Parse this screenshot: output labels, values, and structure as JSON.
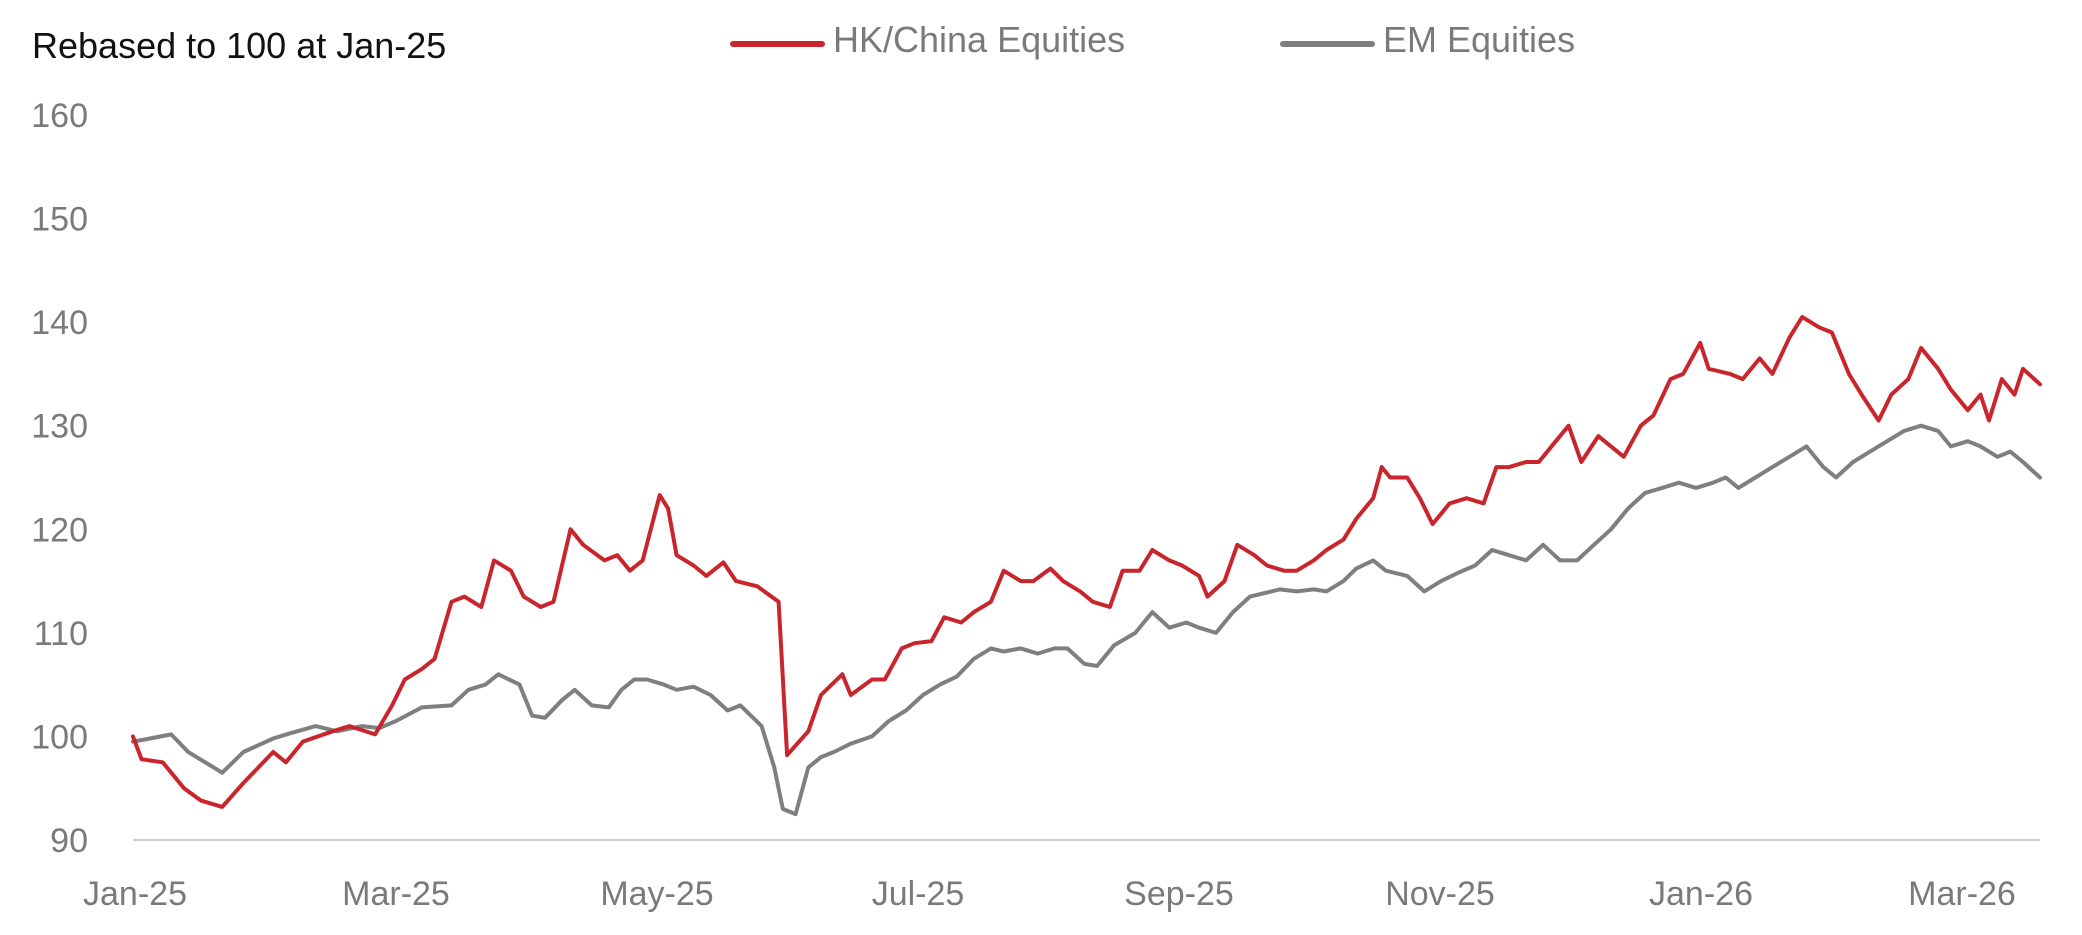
{
  "chart_data": {
    "type": "line",
    "title": "Rebased to 100 at Jan-25",
    "xlabel": "",
    "ylabel": "",
    "ylim": [
      90,
      160
    ],
    "y_ticks": [
      "90",
      "100",
      "110",
      "120",
      "130",
      "140",
      "150",
      "160"
    ],
    "x_tick_labels": [
      "Jan-25",
      "Mar-25",
      "May-25",
      "Jul-25",
      "Sep-25",
      "Nov-25",
      "Jan-26",
      "Mar-26"
    ],
    "x_range": [
      "2025-01-01",
      "2026-03-26"
    ],
    "grid": false,
    "legend_position": "top-center",
    "colors": {
      "hk_china": "#c9252c",
      "em": "#7f7f7f",
      "axis": "#cccccc"
    },
    "series": [
      {
        "name": "HK/China Equities",
        "color": "#c9252c",
        "points": [
          [
            "2025-01-01",
            100
          ],
          [
            "2025-01-03",
            97.8
          ],
          [
            "2025-01-08",
            97.5
          ],
          [
            "2025-01-13",
            95
          ],
          [
            "2025-01-17",
            93.8
          ],
          [
            "2025-01-22",
            93.2
          ],
          [
            "2025-01-27",
            95.5
          ],
          [
            "2025-02-03",
            98.5
          ],
          [
            "2025-02-06",
            97.5
          ],
          [
            "2025-02-10",
            99.5
          ],
          [
            "2025-02-17",
            100.5
          ],
          [
            "2025-02-21",
            101
          ],
          [
            "2025-02-27",
            100.2
          ],
          [
            "2025-03-03",
            103
          ],
          [
            "2025-03-06",
            105.5
          ],
          [
            "2025-03-10",
            106.5
          ],
          [
            "2025-03-13",
            107.5
          ],
          [
            "2025-03-17",
            113
          ],
          [
            "2025-03-20",
            113.5
          ],
          [
            "2025-03-24",
            112.5
          ],
          [
            "2025-03-27",
            117
          ],
          [
            "2025-03-31",
            116
          ],
          [
            "2025-04-03",
            113.5
          ],
          [
            "2025-04-07",
            112.5
          ],
          [
            "2025-04-10",
            113
          ],
          [
            "2025-04-14",
            120
          ],
          [
            "2025-04-17",
            118.5
          ],
          [
            "2025-04-22",
            117
          ],
          [
            "2025-04-25",
            117.5
          ],
          [
            "2025-04-28",
            116
          ],
          [
            "2025-05-01",
            117
          ],
          [
            "2025-05-05",
            123.3
          ],
          [
            "2025-05-07",
            122
          ],
          [
            "2025-05-09",
            117.5
          ],
          [
            "2025-05-13",
            116.5
          ],
          [
            "2025-05-16",
            115.5
          ],
          [
            "2025-05-20",
            116.8
          ],
          [
            "2025-05-23",
            115
          ],
          [
            "2025-05-28",
            114.5
          ],
          [
            "2025-06-02",
            113
          ],
          [
            "2025-06-04",
            98.2
          ],
          [
            "2025-06-09",
            100.5
          ],
          [
            "2025-06-12",
            104
          ],
          [
            "2025-06-17",
            106
          ],
          [
            "2025-06-19",
            104
          ],
          [
            "2025-06-24",
            105.5
          ],
          [
            "2025-06-27",
            105.5
          ],
          [
            "2025-07-01",
            108.5
          ],
          [
            "2025-07-04",
            109
          ],
          [
            "2025-07-08",
            109.2
          ],
          [
            "2025-07-11",
            111.5
          ],
          [
            "2025-07-15",
            111
          ],
          [
            "2025-07-18",
            112
          ],
          [
            "2025-07-22",
            113
          ],
          [
            "2025-07-25",
            116
          ],
          [
            "2025-07-29",
            115
          ],
          [
            "2025-08-01",
            115
          ],
          [
            "2025-08-05",
            116.2
          ],
          [
            "2025-08-08",
            115
          ],
          [
            "2025-08-12",
            114
          ],
          [
            "2025-08-15",
            113
          ],
          [
            "2025-08-19",
            112.5
          ],
          [
            "2025-08-22",
            116
          ],
          [
            "2025-08-26",
            116
          ],
          [
            "2025-08-29",
            118
          ],
          [
            "2025-09-02",
            117
          ],
          [
            "2025-09-05",
            116.5
          ],
          [
            "2025-09-09",
            115.5
          ],
          [
            "2025-09-11",
            113.5
          ],
          [
            "2025-09-15",
            115
          ],
          [
            "2025-09-18",
            118.5
          ],
          [
            "2025-09-22",
            117.5
          ],
          [
            "2025-09-25",
            116.5
          ],
          [
            "2025-09-29",
            116
          ],
          [
            "2025-10-02",
            116
          ],
          [
            "2025-10-06",
            117
          ],
          [
            "2025-10-09",
            118
          ],
          [
            "2025-10-13",
            119
          ],
          [
            "2025-10-16",
            121
          ],
          [
            "2025-10-20",
            123
          ],
          [
            "2025-10-22",
            126
          ],
          [
            "2025-10-24",
            125
          ],
          [
            "2025-10-28",
            125
          ],
          [
            "2025-10-31",
            123
          ],
          [
            "2025-11-03",
            120.5
          ],
          [
            "2025-11-07",
            122.5
          ],
          [
            "2025-11-11",
            123
          ],
          [
            "2025-11-15",
            122.5
          ],
          [
            "2025-11-18",
            126
          ],
          [
            "2025-11-21",
            126
          ],
          [
            "2025-11-25",
            126.5
          ],
          [
            "2025-11-28",
            126.5
          ],
          [
            "2025-12-02",
            128.5
          ],
          [
            "2025-12-05",
            130
          ],
          [
            "2025-12-08",
            126.5
          ],
          [
            "2025-12-12",
            129
          ],
          [
            "2025-12-15",
            128
          ],
          [
            "2025-12-18",
            127
          ],
          [
            "2025-12-22",
            130
          ],
          [
            "2025-12-25",
            131
          ],
          [
            "2025-12-29",
            134.5
          ],
          [
            "2026-01-01",
            135
          ],
          [
            "2026-01-05",
            138
          ],
          [
            "2026-01-07",
            135.5
          ],
          [
            "2026-01-12",
            135
          ],
          [
            "2026-01-15",
            134.5
          ],
          [
            "2026-01-19",
            136.5
          ],
          [
            "2026-01-22",
            135
          ],
          [
            "2026-01-26",
            138.5
          ],
          [
            "2026-01-29",
            140.5
          ],
          [
            "2026-02-02",
            139.5
          ],
          [
            "2026-02-05",
            139
          ],
          [
            "2026-02-09",
            135
          ],
          [
            "2026-02-12",
            133
          ],
          [
            "2026-02-16",
            130.5
          ],
          [
            "2026-02-19",
            133
          ],
          [
            "2026-02-23",
            134.5
          ],
          [
            "2026-02-26",
            137.5
          ],
          [
            "2026-03-02",
            135.5
          ],
          [
            "2026-03-05",
            133.5
          ],
          [
            "2026-03-09",
            131.5
          ],
          [
            "2026-03-12",
            133
          ],
          [
            "2026-03-14",
            130.5
          ],
          [
            "2026-03-17",
            134.5
          ],
          [
            "2026-03-20",
            133
          ],
          [
            "2026-03-22",
            135.5
          ],
          [
            "2026-03-26",
            134
          ]
        ]
      },
      {
        "name": "EM Equities",
        "color": "#7f7f7f",
        "points": [
          [
            "2025-01-01",
            99.5
          ],
          [
            "2025-01-05",
            99.8
          ],
          [
            "2025-01-10",
            100.2
          ],
          [
            "2025-01-14",
            98.5
          ],
          [
            "2025-01-18",
            97.5
          ],
          [
            "2025-01-22",
            96.5
          ],
          [
            "2025-01-27",
            98.5
          ],
          [
            "2025-02-03",
            99.8
          ],
          [
            "2025-02-07",
            100.3
          ],
          [
            "2025-02-13",
            101
          ],
          [
            "2025-02-18",
            100.5
          ],
          [
            "2025-02-24",
            101
          ],
          [
            "2025-02-28",
            100.8
          ],
          [
            "2025-03-04",
            101.5
          ],
          [
            "2025-03-10",
            102.8
          ],
          [
            "2025-03-17",
            103
          ],
          [
            "2025-03-21",
            104.5
          ],
          [
            "2025-03-25",
            105
          ],
          [
            "2025-03-28",
            106
          ],
          [
            "2025-04-02",
            105
          ],
          [
            "2025-04-05",
            102
          ],
          [
            "2025-04-08",
            101.8
          ],
          [
            "2025-04-12",
            103.5
          ],
          [
            "2025-04-15",
            104.5
          ],
          [
            "2025-04-19",
            103
          ],
          [
            "2025-04-23",
            102.8
          ],
          [
            "2025-04-26",
            104.5
          ],
          [
            "2025-04-29",
            105.5
          ],
          [
            "2025-05-02",
            105.5
          ],
          [
            "2025-05-06",
            105
          ],
          [
            "2025-05-09",
            104.5
          ],
          [
            "2025-05-13",
            104.8
          ],
          [
            "2025-05-17",
            104
          ],
          [
            "2025-05-21",
            102.5
          ],
          [
            "2025-05-24",
            103
          ],
          [
            "2025-05-29",
            101
          ],
          [
            "2025-06-01",
            97
          ],
          [
            "2025-06-03",
            93
          ],
          [
            "2025-06-06",
            92.5
          ],
          [
            "2025-06-09",
            97
          ],
          [
            "2025-06-12",
            98
          ],
          [
            "2025-06-15",
            98.5
          ],
          [
            "2025-06-19",
            99.3
          ],
          [
            "2025-06-24",
            100
          ],
          [
            "2025-06-28",
            101.5
          ],
          [
            "2025-07-02",
            102.5
          ],
          [
            "2025-07-06",
            104
          ],
          [
            "2025-07-10",
            105
          ],
          [
            "2025-07-14",
            105.8
          ],
          [
            "2025-07-18",
            107.5
          ],
          [
            "2025-07-22",
            108.5
          ],
          [
            "2025-07-25",
            108.2
          ],
          [
            "2025-07-29",
            108.5
          ],
          [
            "2025-08-02",
            108
          ],
          [
            "2025-08-06",
            108.5
          ],
          [
            "2025-08-09",
            108.5
          ],
          [
            "2025-08-13",
            107
          ],
          [
            "2025-08-16",
            106.8
          ],
          [
            "2025-08-20",
            108.8
          ],
          [
            "2025-08-25",
            110
          ],
          [
            "2025-08-29",
            112
          ],
          [
            "2025-09-02",
            110.5
          ],
          [
            "2025-09-06",
            111
          ],
          [
            "2025-09-09",
            110.5
          ],
          [
            "2025-09-13",
            110
          ],
          [
            "2025-09-17",
            112
          ],
          [
            "2025-09-21",
            113.5
          ],
          [
            "2025-09-24",
            113.8
          ],
          [
            "2025-09-28",
            114.2
          ],
          [
            "2025-10-02",
            114
          ],
          [
            "2025-10-06",
            114.2
          ],
          [
            "2025-10-09",
            114
          ],
          [
            "2025-10-13",
            115
          ],
          [
            "2025-10-16",
            116.2
          ],
          [
            "2025-10-20",
            117
          ],
          [
            "2025-10-23",
            116
          ],
          [
            "2025-10-28",
            115.5
          ],
          [
            "2025-11-01",
            114
          ],
          [
            "2025-11-05",
            115
          ],
          [
            "2025-11-09",
            115.8
          ],
          [
            "2025-11-13",
            116.5
          ],
          [
            "2025-11-17",
            118
          ],
          [
            "2025-11-21",
            117.5
          ],
          [
            "2025-11-25",
            117
          ],
          [
            "2025-11-29",
            118.5
          ],
          [
            "2025-12-03",
            117
          ],
          [
            "2025-12-07",
            117
          ],
          [
            "2025-12-11",
            118.5
          ],
          [
            "2025-12-15",
            120
          ],
          [
            "2025-12-19",
            122
          ],
          [
            "2025-12-23",
            123.5
          ],
          [
            "2025-12-27",
            124
          ],
          [
            "2025-12-31",
            124.5
          ],
          [
            "2026-01-04",
            124
          ],
          [
            "2026-01-08",
            124.5
          ],
          [
            "2026-01-11",
            125
          ],
          [
            "2026-01-14",
            124
          ],
          [
            "2026-01-18",
            125
          ],
          [
            "2026-01-22",
            126
          ],
          [
            "2026-01-26",
            127
          ],
          [
            "2026-01-30",
            128
          ],
          [
            "2026-02-03",
            126
          ],
          [
            "2026-02-06",
            125
          ],
          [
            "2026-02-10",
            126.5
          ],
          [
            "2026-02-14",
            127.5
          ],
          [
            "2026-02-18",
            128.5
          ],
          [
            "2026-02-22",
            129.5
          ],
          [
            "2026-02-26",
            130
          ],
          [
            "2026-03-02",
            129.5
          ],
          [
            "2026-03-05",
            128
          ],
          [
            "2026-03-09",
            128.5
          ],
          [
            "2026-03-12",
            128
          ],
          [
            "2026-03-16",
            127
          ],
          [
            "2026-03-19",
            127.5
          ],
          [
            "2026-03-22",
            126.5
          ],
          [
            "2026-03-26",
            125
          ]
        ]
      }
    ]
  }
}
